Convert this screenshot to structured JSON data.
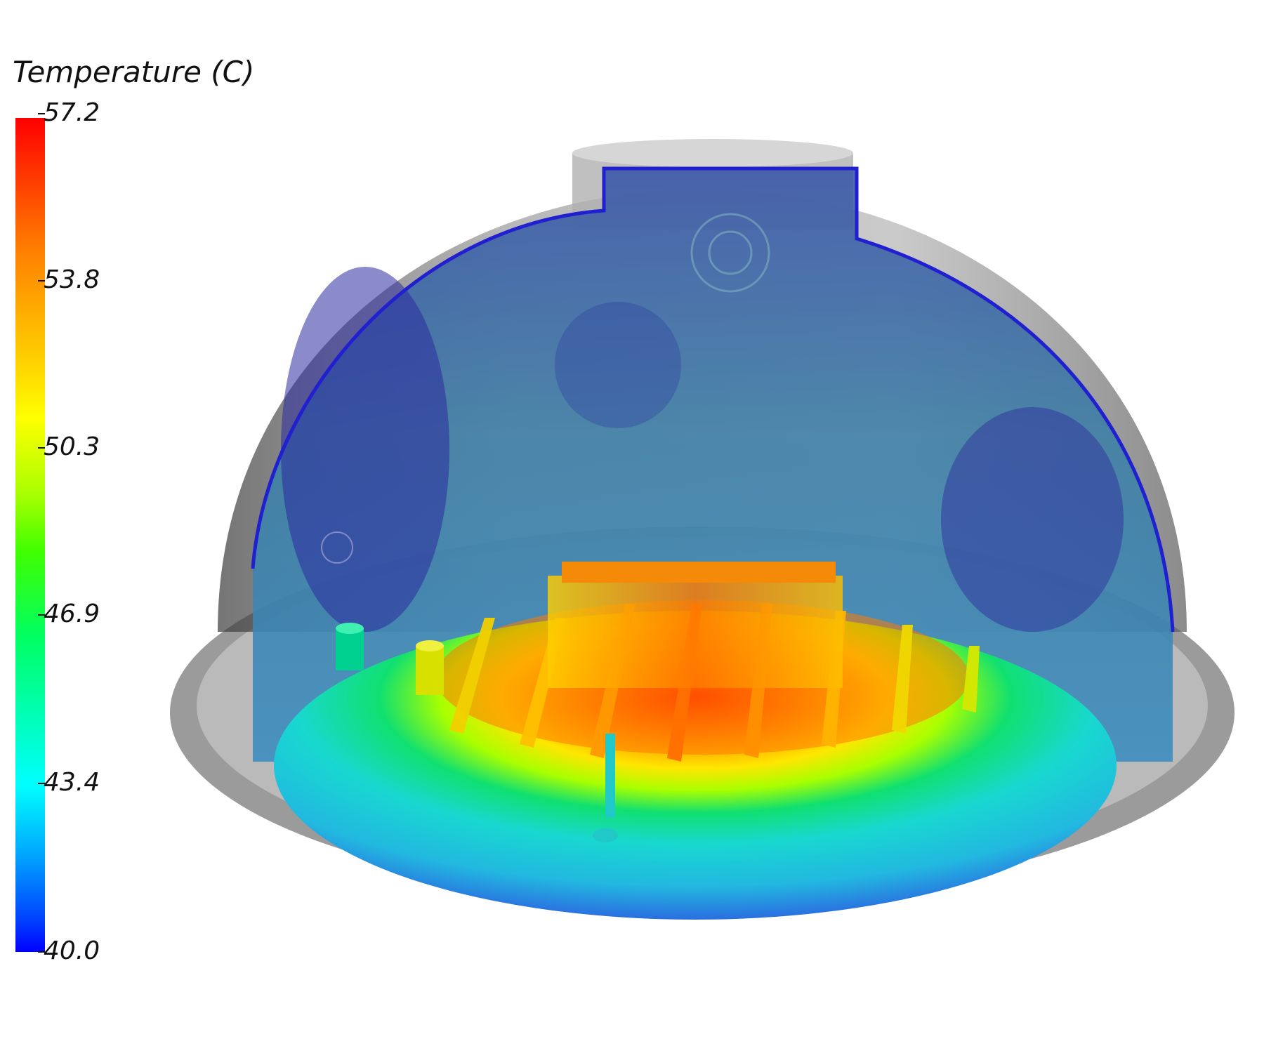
{
  "legend": {
    "title": "Temperature (C)",
    "ticks": [
      "57.2",
      "53.8",
      "50.3",
      "46.9",
      "43.4",
      "40.0"
    ]
  },
  "colors": {
    "max": "#ff0000",
    "high": "#ffff00",
    "mid": "#00ff60",
    "low_mid": "#00ffff",
    "min": "#0000ff",
    "shell": "#9a9a9a"
  },
  "scene": {
    "description_icon": "dome-heatsink-temperature-render"
  }
}
